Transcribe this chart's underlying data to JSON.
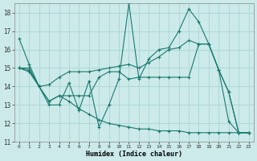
{
  "xlabel": "Humidex (Indice chaleur)",
  "bg_color": "#cceaea",
  "grid_color": "#b0d8d8",
  "line_color": "#1a7a6e",
  "xlim": [
    -0.5,
    23.5
  ],
  "ylim": [
    11,
    18.5
  ],
  "yticks": [
    11,
    12,
    13,
    14,
    15,
    16,
    17,
    18
  ],
  "xticks": [
    0,
    1,
    2,
    3,
    4,
    5,
    6,
    7,
    8,
    9,
    10,
    11,
    12,
    13,
    14,
    15,
    16,
    17,
    18,
    19,
    20,
    21,
    22,
    23
  ],
  "line1_x": [
    0,
    1,
    2,
    3,
    4,
    5,
    6,
    7,
    8,
    9,
    10,
    11,
    12,
    13,
    14,
    15,
    16,
    17,
    18,
    19,
    20,
    21,
    22,
    23
  ],
  "line1_y": [
    16.6,
    15.2,
    14.0,
    13.0,
    13.0,
    14.2,
    12.7,
    14.3,
    11.8,
    13.0,
    14.4,
    18.5,
    14.4,
    15.5,
    16.0,
    16.1,
    17.0,
    18.2,
    17.5,
    16.3,
    14.9,
    12.1,
    11.5,
    11.5
  ],
  "line2_x": [
    0,
    1,
    2,
    3,
    4,
    5,
    6,
    7,
    8,
    9,
    10,
    11,
    12,
    13,
    14,
    15,
    16,
    17,
    18,
    19,
    20,
    21,
    22,
    23
  ],
  "line2_y": [
    15.0,
    15.0,
    14.0,
    14.1,
    14.5,
    14.8,
    14.8,
    14.8,
    14.9,
    15.0,
    15.1,
    15.2,
    15.0,
    15.3,
    15.6,
    16.0,
    16.1,
    16.5,
    16.3,
    16.3,
    14.9,
    13.7,
    11.5,
    11.5
  ],
  "line3_x": [
    0,
    1,
    2,
    3,
    4,
    5,
    6,
    7,
    8,
    9,
    10,
    11,
    12,
    13,
    14,
    15,
    16,
    17,
    18,
    19,
    20,
    21,
    22,
    23
  ],
  "line3_y": [
    15.0,
    14.9,
    14.0,
    13.2,
    13.5,
    13.5,
    13.5,
    13.5,
    14.5,
    14.8,
    14.8,
    14.4,
    14.5,
    14.5,
    14.5,
    14.5,
    14.5,
    14.5,
    16.3,
    16.3,
    14.9,
    13.7,
    11.5,
    11.5
  ],
  "line4_x": [
    0,
    1,
    2,
    3,
    4,
    5,
    6,
    7,
    8,
    9,
    10,
    11,
    12,
    13,
    14,
    15,
    16,
    17,
    18,
    19,
    20,
    21,
    22,
    23
  ],
  "line4_y": [
    15.0,
    14.8,
    14.0,
    13.2,
    13.5,
    13.2,
    12.8,
    12.5,
    12.2,
    12.0,
    11.9,
    11.8,
    11.7,
    11.7,
    11.6,
    11.6,
    11.6,
    11.5,
    11.5,
    11.5,
    11.5,
    11.5,
    11.5,
    11.5
  ]
}
